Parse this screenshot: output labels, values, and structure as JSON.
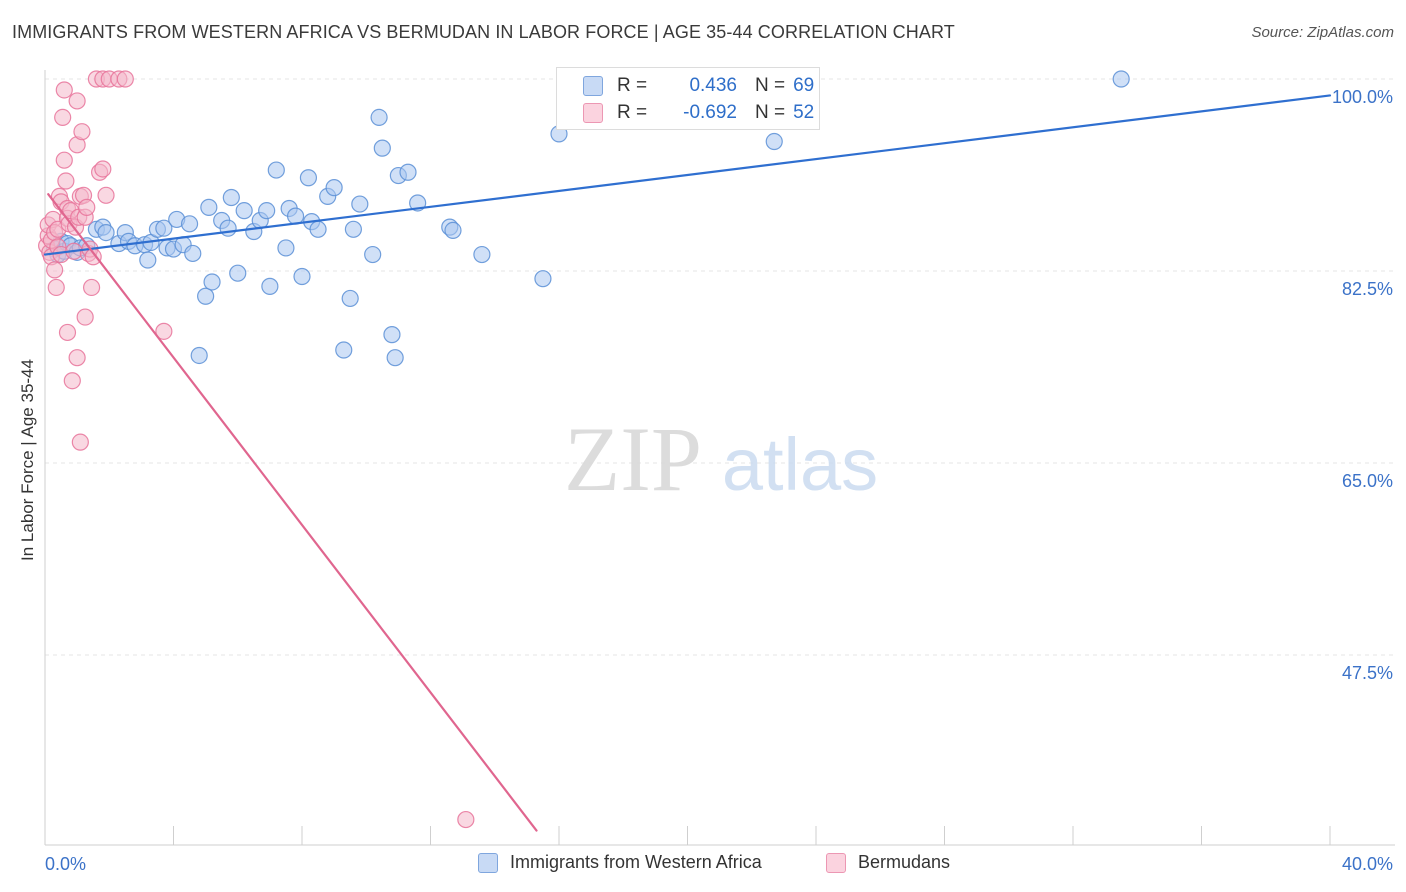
{
  "title": "IMMIGRANTS FROM WESTERN AFRICA VS BERMUDAN IN LABOR FORCE | AGE 35-44 CORRELATION CHART",
  "source": "Source: ZipAtlas.com",
  "watermark": {
    "zip": "ZIP",
    "atlas": "atlas"
  },
  "stats": [
    {
      "r_label": "R =",
      "r_value": "0.436",
      "n_label": "N =",
      "n_value": "69",
      "color": "#aac7f0"
    },
    {
      "r_label": "R =",
      "r_value": "-0.692",
      "n_label": "N =",
      "n_value": "52",
      "color": "#f4b8cb"
    }
  ],
  "chart_data": {
    "type": "scatter",
    "title": "IMMIGRANTS FROM WESTERN AFRICA VS BERMUDAN IN LABOR FORCE | AGE 35-44 CORRELATION CHART",
    "xlabel": "",
    "ylabel": "In Labor Force | Age 35-44",
    "xlim": [
      0,
      40
    ],
    "ylim": [
      30,
      102
    ],
    "x_tick_labels": [
      "0.0%",
      "40.0%"
    ],
    "y_ticks": [
      100,
      82.5,
      65,
      47.5
    ],
    "y_tick_labels": [
      "100.0%",
      "82.5%",
      "65.0%",
      "47.5%"
    ],
    "grid": true,
    "legend_position": "bottom-center",
    "series": [
      {
        "name": "Immigrants from Western Africa",
        "color": "#5b8fd6",
        "fill": "#aac7f0",
        "trend": {
          "x": [
            0,
            40
          ],
          "y": [
            84.0,
            98.5
          ],
          "color": "#2f6fd0"
        },
        "points": [
          [
            0.3,
            84.5
          ],
          [
            0.4,
            84.0
          ],
          [
            0.5,
            85.2
          ],
          [
            0.6,
            84.3
          ],
          [
            0.7,
            85.0
          ],
          [
            0.8,
            84.8
          ],
          [
            1.0,
            84.2
          ],
          [
            1.1,
            84.6
          ],
          [
            1.3,
            84.8
          ],
          [
            1.6,
            86.3
          ],
          [
            1.8,
            86.5
          ],
          [
            1.9,
            86.0
          ],
          [
            2.3,
            85.0
          ],
          [
            2.5,
            86.0
          ],
          [
            2.6,
            85.2
          ],
          [
            2.8,
            84.8
          ],
          [
            3.1,
            84.9
          ],
          [
            3.2,
            83.5
          ],
          [
            3.3,
            85.1
          ],
          [
            3.5,
            86.3
          ],
          [
            3.7,
            86.4
          ],
          [
            3.8,
            84.6
          ],
          [
            4.0,
            84.5
          ],
          [
            4.1,
            87.2
          ],
          [
            4.3,
            84.9
          ],
          [
            4.5,
            86.8
          ],
          [
            4.6,
            84.1
          ],
          [
            4.8,
            74.8
          ],
          [
            5.0,
            80.2
          ],
          [
            5.1,
            88.3
          ],
          [
            5.2,
            81.5
          ],
          [
            5.5,
            87.1
          ],
          [
            5.7,
            86.4
          ],
          [
            5.8,
            89.2
          ],
          [
            6.0,
            82.3
          ],
          [
            6.2,
            88.0
          ],
          [
            6.5,
            86.1
          ],
          [
            6.7,
            87.1
          ],
          [
            6.9,
            88.0
          ],
          [
            7.0,
            81.1
          ],
          [
            7.2,
            91.7
          ],
          [
            7.5,
            84.6
          ],
          [
            7.6,
            88.2
          ],
          [
            7.8,
            87.5
          ],
          [
            8.0,
            82.0
          ],
          [
            8.2,
            91.0
          ],
          [
            8.3,
            87.0
          ],
          [
            8.5,
            86.3
          ],
          [
            8.8,
            89.3
          ],
          [
            9.0,
            90.1
          ],
          [
            9.3,
            75.3
          ],
          [
            9.5,
            80.0
          ],
          [
            9.6,
            86.3
          ],
          [
            9.8,
            88.6
          ],
          [
            10.2,
            84.0
          ],
          [
            10.8,
            76.7
          ],
          [
            10.9,
            74.6
          ],
          [
            10.4,
            96.5
          ],
          [
            10.5,
            93.7
          ],
          [
            11.0,
            91.2
          ],
          [
            11.3,
            91.5
          ],
          [
            11.6,
            88.7
          ],
          [
            12.6,
            86.5
          ],
          [
            12.7,
            86.2
          ],
          [
            13.6,
            84.0
          ],
          [
            15.5,
            81.8
          ],
          [
            16.0,
            95.0
          ],
          [
            22.7,
            94.3
          ],
          [
            33.5,
            100.0
          ]
        ]
      },
      {
        "name": "Bermudans",
        "color": "#e8739a",
        "fill": "#f4b8cb",
        "trend": {
          "x": [
            0.1,
            15.3
          ],
          "y": [
            89.5,
            31.5
          ],
          "color": "#e0668f"
        },
        "points": [
          [
            0.05,
            84.8
          ],
          [
            0.1,
            85.7
          ],
          [
            0.1,
            86.7
          ],
          [
            0.15,
            84.2
          ],
          [
            0.2,
            85.3
          ],
          [
            0.2,
            83.8
          ],
          [
            0.25,
            87.2
          ],
          [
            0.3,
            86.0
          ],
          [
            0.3,
            82.6
          ],
          [
            0.35,
            81.0
          ],
          [
            0.4,
            84.7
          ],
          [
            0.4,
            86.3
          ],
          [
            0.45,
            89.3
          ],
          [
            0.5,
            88.8
          ],
          [
            0.5,
            84.0
          ],
          [
            0.55,
            96.5
          ],
          [
            0.6,
            92.6
          ],
          [
            0.6,
            99.0
          ],
          [
            0.65,
            90.7
          ],
          [
            0.7,
            88.2
          ],
          [
            0.7,
            87.3
          ],
          [
            0.75,
            86.8
          ],
          [
            0.8,
            88.0
          ],
          [
            0.85,
            72.5
          ],
          [
            0.9,
            84.3
          ],
          [
            0.95,
            86.5
          ],
          [
            1.0,
            98.0
          ],
          [
            1.0,
            94.0
          ],
          [
            1.05,
            87.4
          ],
          [
            1.1,
            89.3
          ],
          [
            1.15,
            95.2
          ],
          [
            1.2,
            89.4
          ],
          [
            0.7,
            76.9
          ],
          [
            1.25,
            87.4
          ],
          [
            1.3,
            88.3
          ],
          [
            1.35,
            84.1
          ],
          [
            1.4,
            84.5
          ],
          [
            1.45,
            81.0
          ],
          [
            1.0,
            74.6
          ],
          [
            1.1,
            66.9
          ],
          [
            1.25,
            78.3
          ],
          [
            1.5,
            83.8
          ],
          [
            1.6,
            100.0
          ],
          [
            1.7,
            91.5
          ],
          [
            1.8,
            100.0
          ],
          [
            1.9,
            89.4
          ],
          [
            2.0,
            100.0
          ],
          [
            2.3,
            100.0
          ],
          [
            1.8,
            91.8
          ],
          [
            2.5,
            100.0
          ],
          [
            3.7,
            77.0
          ],
          [
            13.1,
            32.5
          ]
        ]
      }
    ]
  }
}
